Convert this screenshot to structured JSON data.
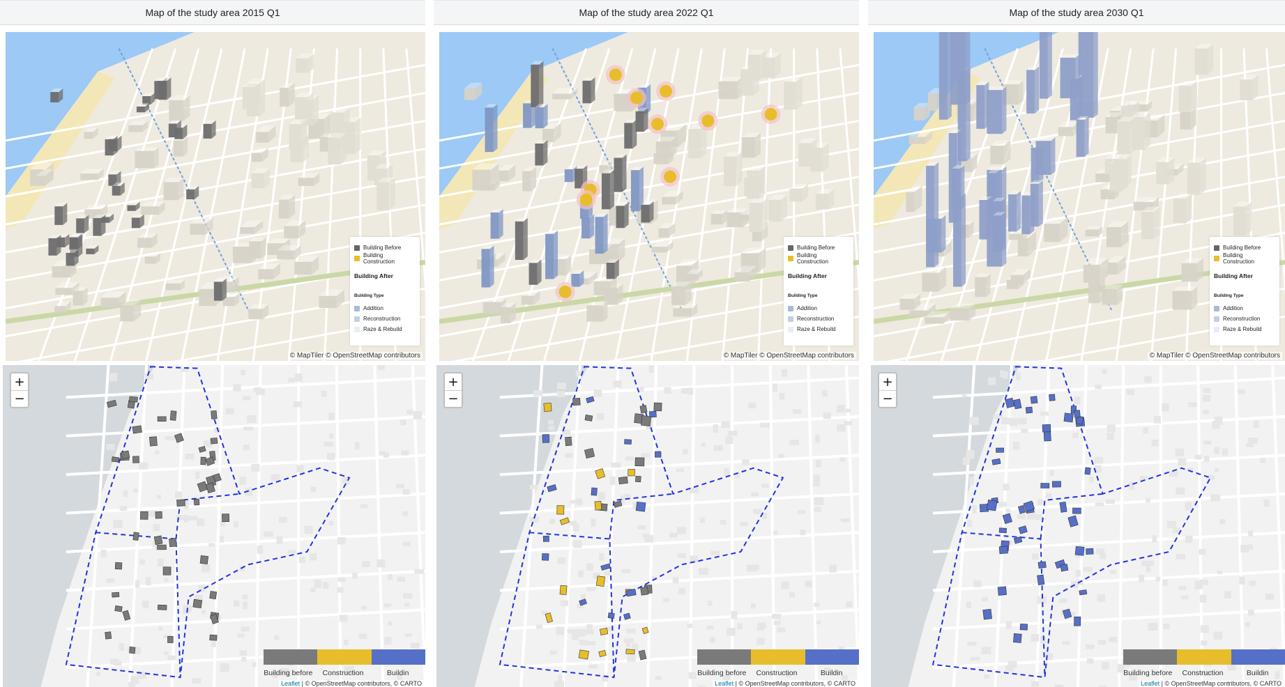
{
  "colors": {
    "before": "#7a7a7a",
    "construction": "#e8bd2c",
    "after": "#5670c8",
    "addition": "#a9bad6",
    "reconstruction": "#c3cfe3",
    "raze": "#e9ecf7",
    "sea": "#9cc9f5",
    "boundary": "#2233dd"
  },
  "panels": [
    {
      "title": "Map of the study area 2015 Q1",
      "legend3d": {
        "before": "Building Before",
        "construction": "Building Construction",
        "after_heading": "Building After",
        "type_heading": "Building Type",
        "addition": "Addition",
        "reconstruction": "Reconstruction",
        "raze": "Raze & Rebuild"
      },
      "attribution3d": "© MapTiler © OpenStreetMap contributors",
      "zoom_in": "+",
      "zoom_out": "−",
      "legend2d": {
        "before": "Building before",
        "construction": "Construction",
        "after": "Buildin"
      },
      "attribution2d": {
        "leaflet": "Leaflet",
        "rest": " | © OpenStreetMap contributors, © CARTO"
      }
    },
    {
      "title": "Map of the study area 2022 Q1",
      "legend3d": {
        "before": "Building Before",
        "construction": "Building Construction",
        "after_heading": "Building After",
        "type_heading": "Building Type",
        "addition": "Addition",
        "reconstruction": "Reconstruction",
        "raze": "Raze & Rebuild"
      },
      "attribution3d": "© MapTiler © OpenStreetMap contributors",
      "zoom_in": "+",
      "zoom_out": "−",
      "legend2d": {
        "before": "Building before",
        "construction": "Construction",
        "after": "Buildin"
      },
      "attribution2d": {
        "leaflet": "Leaflet",
        "rest": " | © OpenStreetMap contributors, © CARTO"
      }
    },
    {
      "title": "Map of the study area 2030 Q1",
      "legend3d": {
        "before": "Building Before",
        "construction": "Building Construction",
        "after_heading": "Building After",
        "type_heading": "Building Type",
        "addition": "Addition",
        "reconstruction": "Reconstruction",
        "raze": "Raze & Rebuild"
      },
      "attribution3d": "© MapTiler © OpenStreetMap contributors",
      "zoom_in": "+",
      "zoom_out": "−",
      "legend2d": {
        "before": "Building before",
        "construction": "Construction",
        "after": "Buildin"
      },
      "attribution2d": {
        "leaflet": "Leaflet",
        "rest": " | © OpenStreetMap contributors, © CARTO"
      }
    }
  ]
}
